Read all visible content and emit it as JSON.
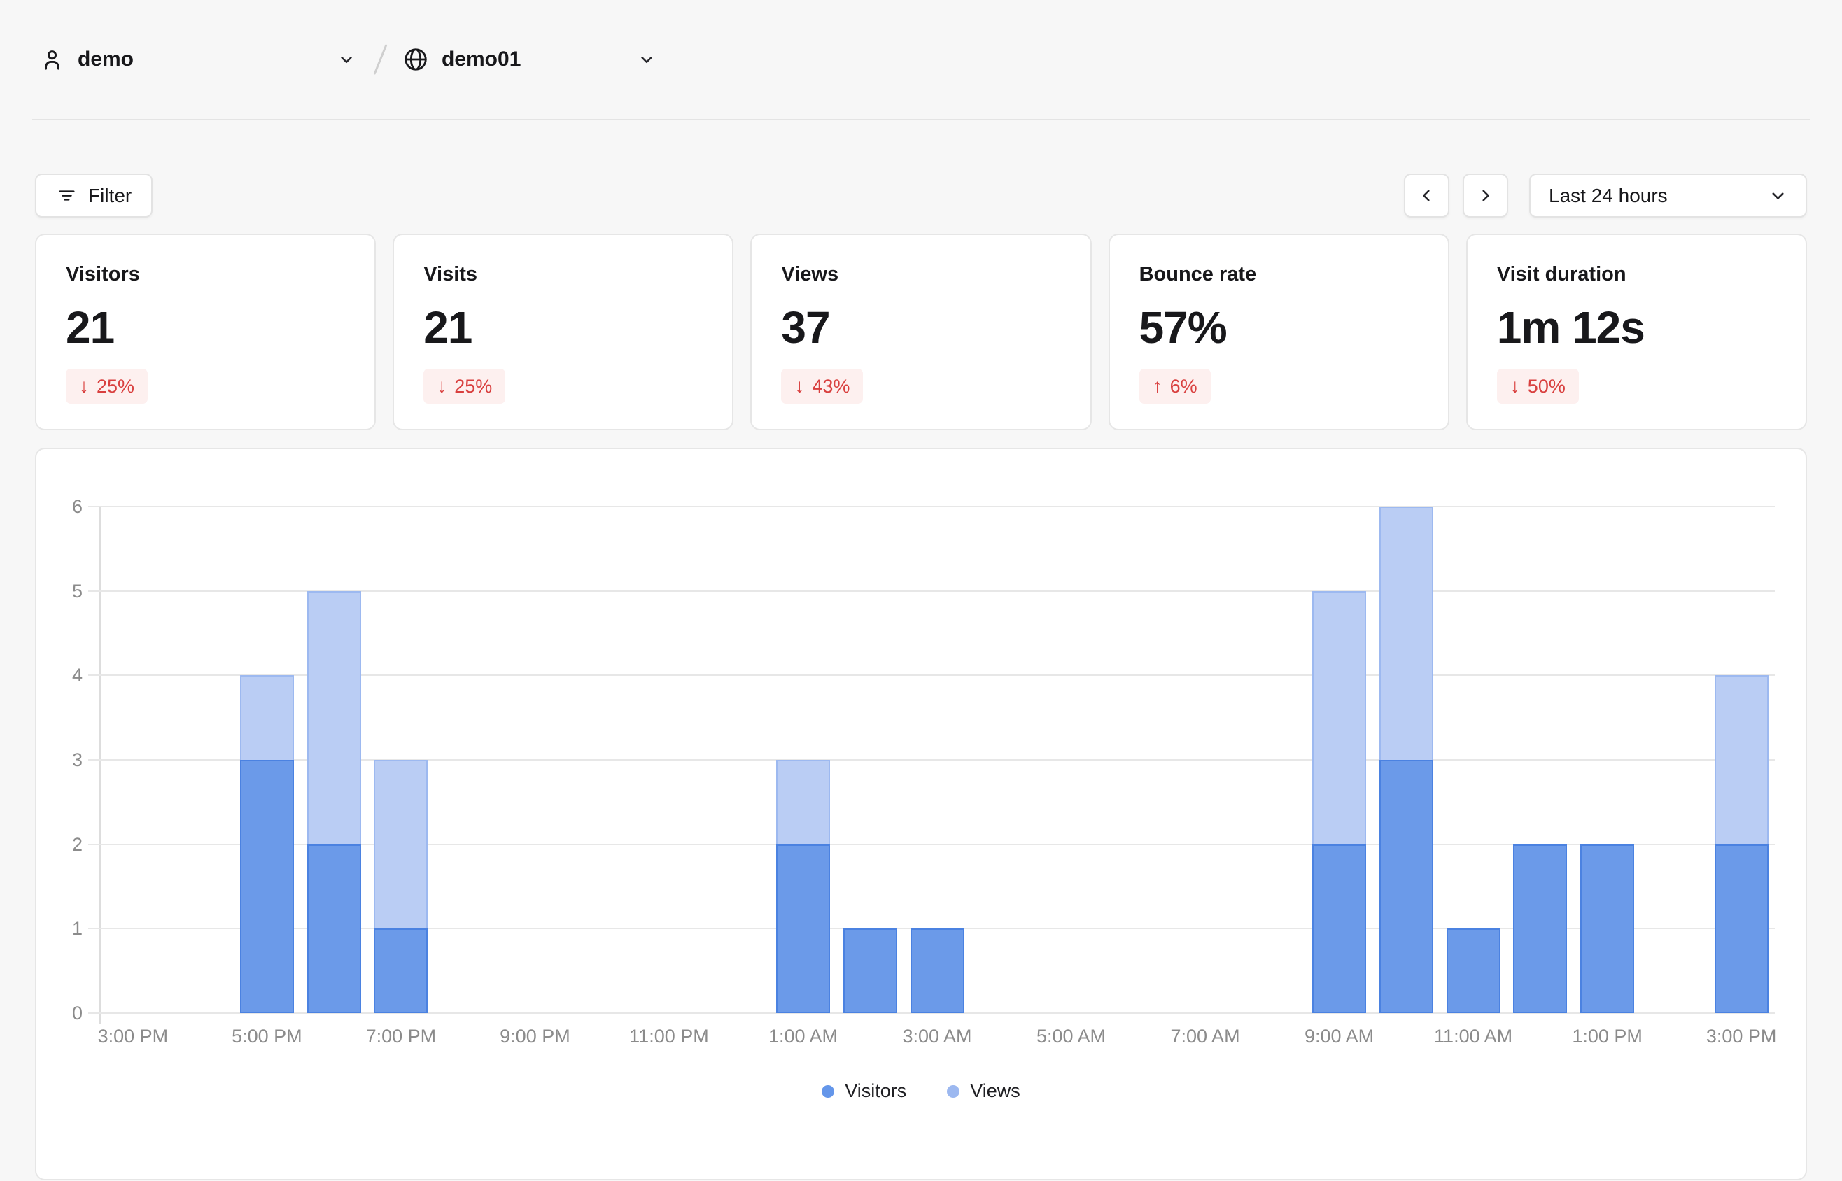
{
  "header": {
    "team": {
      "icon": "user-icon",
      "name": "demo"
    },
    "website": {
      "icon": "globe-icon",
      "name": "demo01"
    }
  },
  "toolbar": {
    "filter_label": "Filter",
    "date_range": {
      "value": "Last 24 hours"
    }
  },
  "metrics": {
    "cards": [
      {
        "label": "Visitors",
        "value": "21",
        "change": "25%",
        "direction": "down"
      },
      {
        "label": "Visits",
        "value": "21",
        "change": "25%",
        "direction": "down"
      },
      {
        "label": "Views",
        "value": "37",
        "change": "43%",
        "direction": "down"
      },
      {
        "label": "Bounce rate",
        "value": "57%",
        "change": "6%",
        "direction": "up"
      },
      {
        "label": "Visit duration",
        "value": "1m 12s",
        "change": "50%",
        "direction": "down"
      }
    ]
  },
  "chart_data": {
    "type": "bar",
    "title": "",
    "xlabel": "",
    "ylabel": "",
    "ylim": [
      0,
      6
    ],
    "yticks": [
      0,
      1,
      2,
      3,
      4,
      5,
      6
    ],
    "grid": "horizontal",
    "legend_position": "bottom-center",
    "x": [
      "3:00 PM",
      "4:00 PM",
      "5:00 PM",
      "6:00 PM",
      "7:00 PM",
      "8:00 PM",
      "9:00 PM",
      "10:00 PM",
      "11:00 PM",
      "12:00 AM",
      "1:00 AM",
      "2:00 AM",
      "3:00 AM",
      "4:00 AM",
      "5:00 AM",
      "6:00 AM",
      "7:00 AM",
      "8:00 AM",
      "9:00 AM",
      "10:00 AM",
      "11:00 AM",
      "12:00 PM",
      "1:00 PM",
      "2:00 PM",
      "3:00 PM"
    ],
    "x_tick_label_every": 2,
    "series": [
      {
        "name": "Visitors",
        "values": [
          0,
          0,
          3,
          2,
          1,
          0,
          0,
          0,
          0,
          0,
          2,
          1,
          1,
          0,
          0,
          0,
          0,
          0,
          2,
          3,
          1,
          2,
          2,
          0,
          2
        ]
      },
      {
        "name": "Views",
        "values": [
          0,
          0,
          4,
          5,
          3,
          0,
          0,
          0,
          0,
          0,
          3,
          1,
          1,
          0,
          0,
          0,
          0,
          0,
          5,
          6,
          1,
          2,
          2,
          0,
          4
        ]
      }
    ],
    "legend": [
      {
        "label": "Visitors",
        "dot_color": "#6496ea"
      },
      {
        "label": "Views",
        "dot_color": "#9cb8f0"
      }
    ]
  },
  "colors": {
    "visitors_bar_fill": "#6b9ae9",
    "visitors_bar_border": "#4b82e1",
    "views_bar_fill": "#bacdf4",
    "views_bar_border": "#9db9f0",
    "badge_text": "#d9403f",
    "badge_bg": "#fdf0ef",
    "page_bg": "#f7f7f7"
  }
}
